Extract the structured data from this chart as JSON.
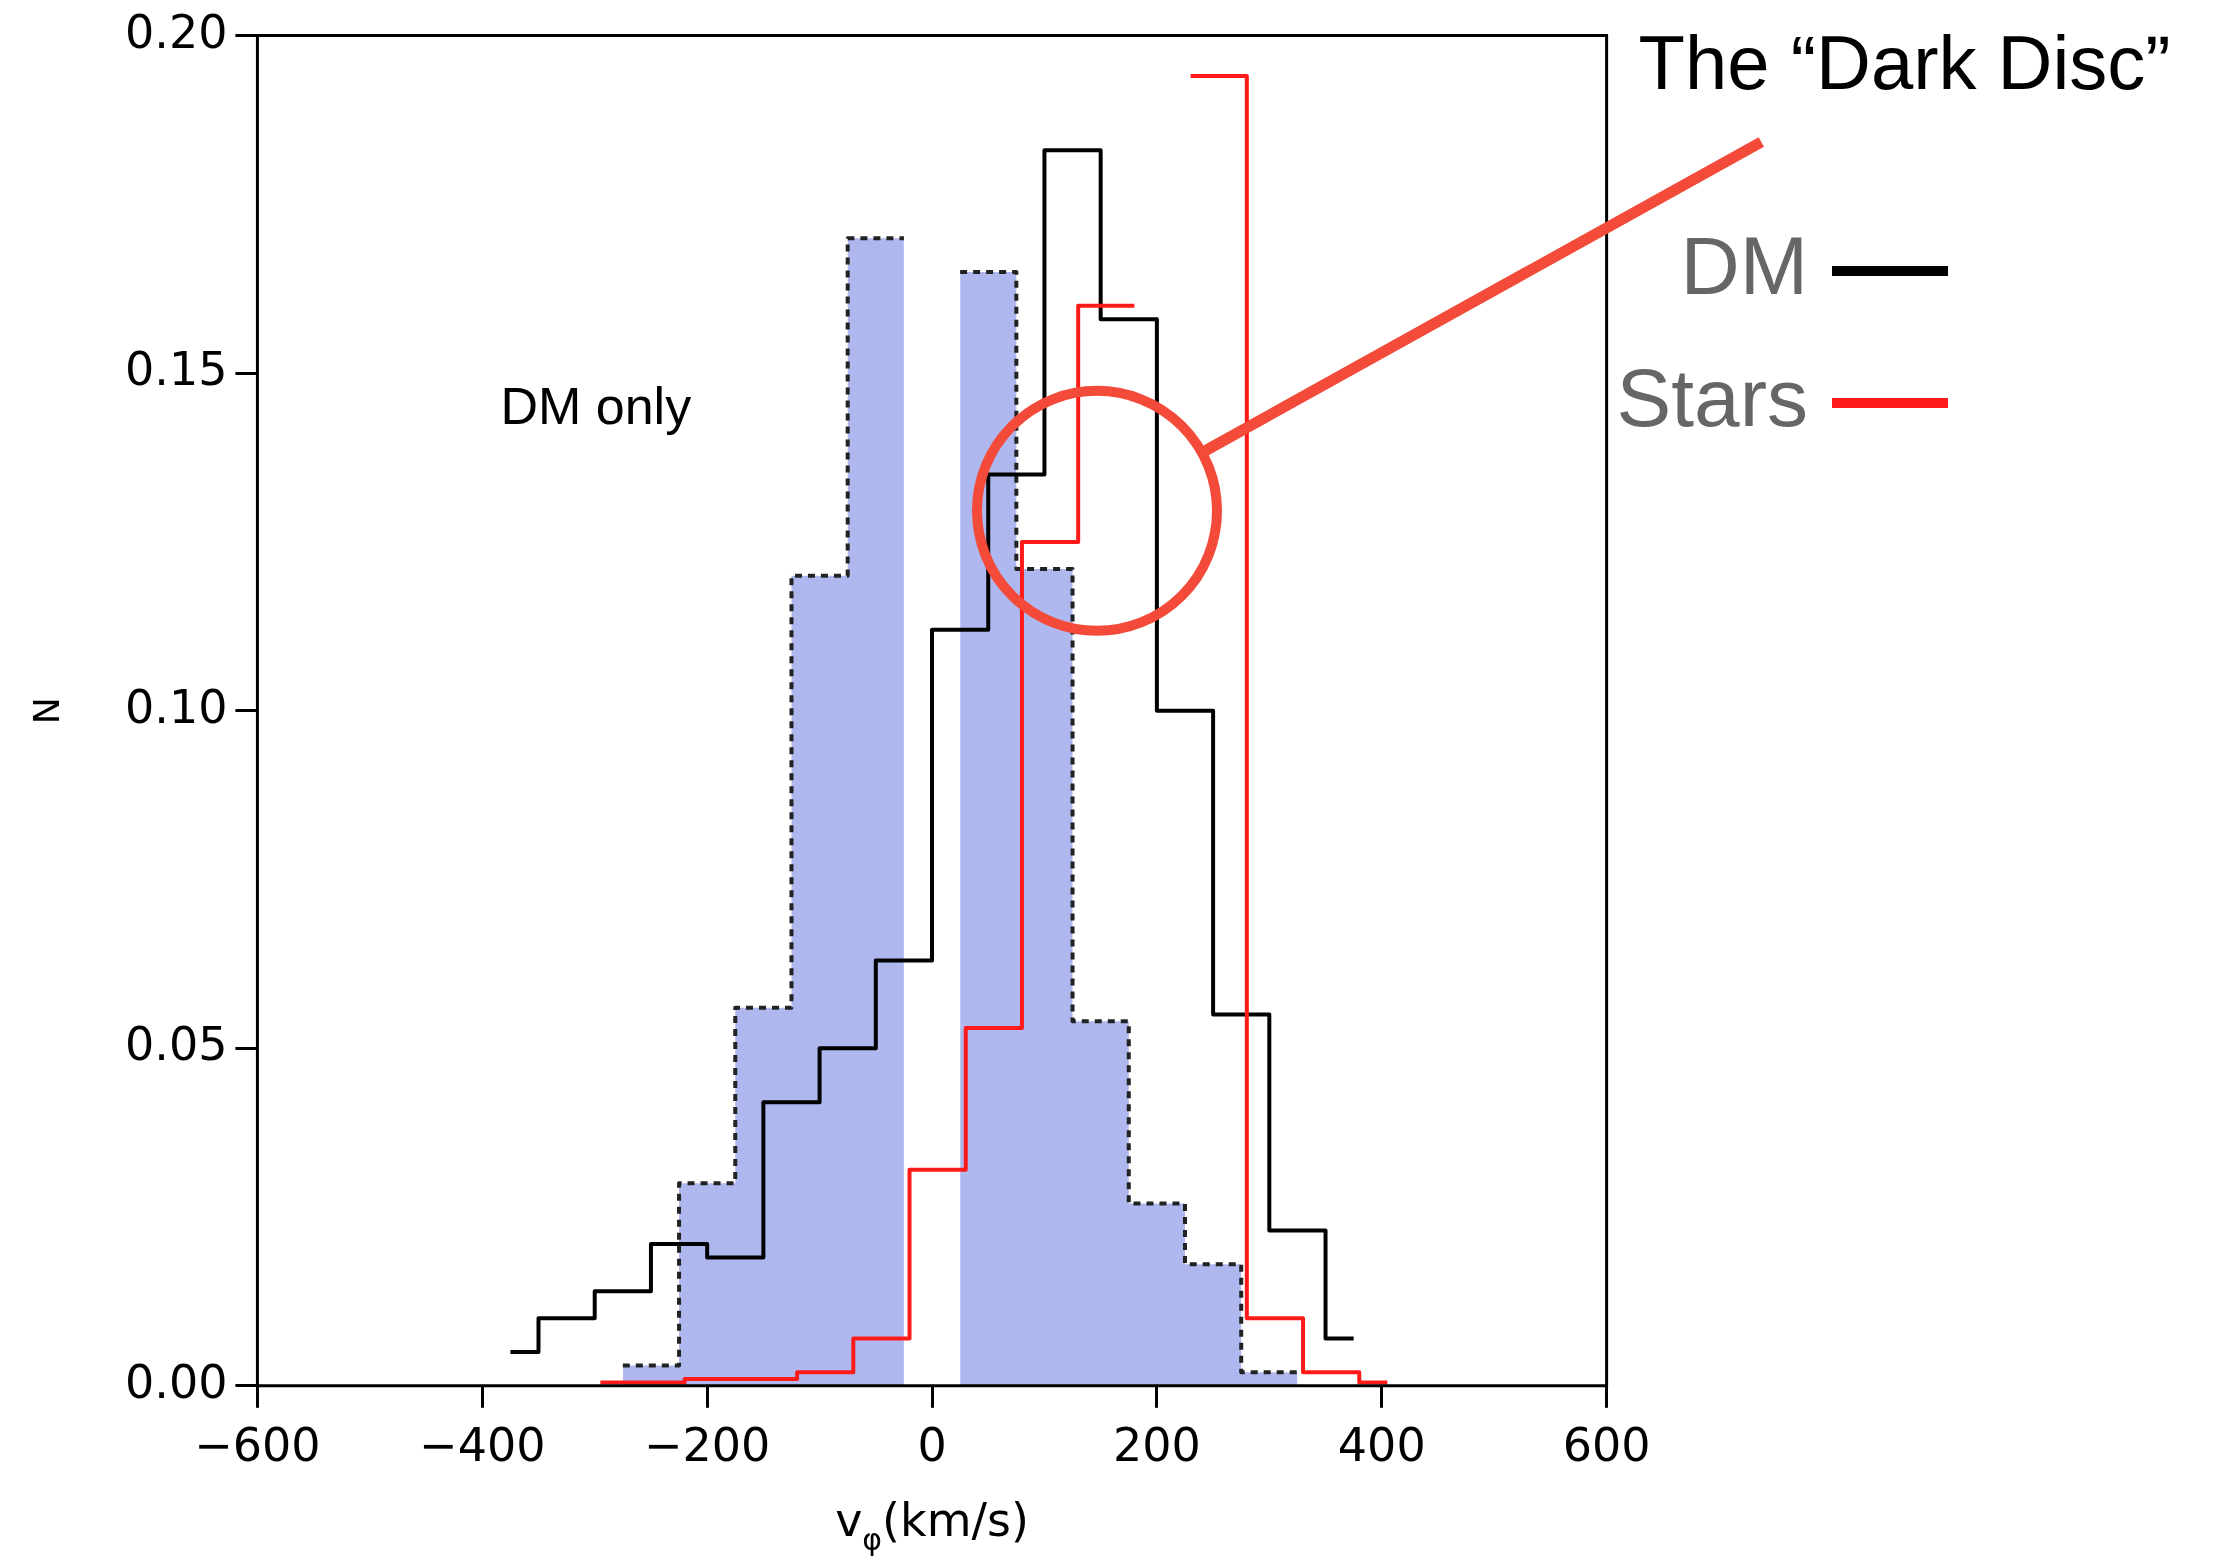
{
  "chart_data": {
    "type": "line",
    "xlabel": "v$_{φ}$(km/s)",
    "ylabel": "N",
    "xlim": [
      -600,
      600
    ],
    "ylim": [
      0,
      0.2
    ],
    "xticks": [
      {
        "value": -600,
        "label": "−600"
      },
      {
        "value": -400,
        "label": "−400"
      },
      {
        "value": -200,
        "label": "−200"
      },
      0,
      200,
      400,
      600
    ],
    "yticks": [
      {
        "value": 0,
        "label": "0.00"
      },
      {
        "value": 0.05,
        "label": "0.05"
      },
      {
        "value": 0.1,
        "label": "0.10"
      },
      {
        "value": 0.15,
        "label": "0.15"
      },
      {
        "value": 0.2,
        "label": "0.20"
      }
    ],
    "grid": false,
    "legend": "right",
    "annotations": [
      "DM only",
      "The “Dark Disc”"
    ],
    "series": [
      {
        "type": "area",
        "color": "#aeb8ef",
        "line_style": "dotted",
        "x": [
          -275,
          -225,
          -225,
          -175,
          -175,
          -125,
          -125,
          -75,
          -75,
          -25
        ],
        "values": [
          0.003,
          0.003,
          0.03,
          0.03,
          0.056,
          0.056,
          0.12,
          0.12,
          0.17,
          0.17
        ]
      },
      {
        "type": "area",
        "color": "#aeb8ef",
        "line_style": "dotted",
        "x": [
          25,
          75,
          75,
          125,
          125,
          175,
          175,
          225,
          225,
          275,
          275,
          325
        ],
        "values": [
          0.165,
          0.165,
          0.121,
          0.121,
          0.054,
          0.054,
          0.027,
          0.027,
          0.018,
          0.018,
          0.002,
          0.002
        ]
      },
      {
        "name": "DM",
        "color": "#000000",
        "x": [
          -375,
          -350,
          -350,
          -300,
          -300,
          -250,
          -250,
          -200,
          -200,
          -150,
          -150,
          -100,
          -100,
          -50,
          -50,
          0,
          0,
          50,
          50,
          100,
          100,
          150,
          150,
          200,
          200,
          250,
          250,
          300,
          300,
          350,
          350,
          375
        ],
        "values": [
          0.005,
          0.005,
          0.01,
          0.01,
          0.014,
          0.014,
          0.021,
          0.021,
          0.019,
          0.019,
          0.042,
          0.042,
          0.05,
          0.05,
          0.063,
          0.063,
          0.112,
          0.112,
          0.135,
          0.135,
          0.183,
          0.183,
          0.158,
          0.158,
          0.1,
          0.1,
          0.055,
          0.055,
          0.023,
          0.023,
          0.007,
          0.007
        ]
      },
      {
        "name": "Stars",
        "color": "#ff1a1a",
        "x": [
          -295,
          -220,
          -220,
          -170,
          -170,
          -120,
          -120,
          -70,
          -70,
          -20,
          -20,
          30,
          30,
          80,
          80,
          130,
          130,
          180
        ],
        "values": [
          0.0005,
          0.0005,
          0.001,
          0.001,
          0.001,
          0.001,
          0.002,
          0.002,
          0.007,
          0.007,
          0.032,
          0.032,
          0.053,
          0.053,
          0.125,
          0.125,
          0.16,
          0.16
        ]
      },
      {
        "color": "#ff1a1a",
        "x": [
          230,
          280,
          280,
          330,
          330,
          380,
          380,
          405
        ],
        "values": [
          0.194,
          0.194,
          0.01,
          0.01,
          0.002,
          0.002,
          0.0005,
          0.0005
        ]
      }
    ]
  }
}
